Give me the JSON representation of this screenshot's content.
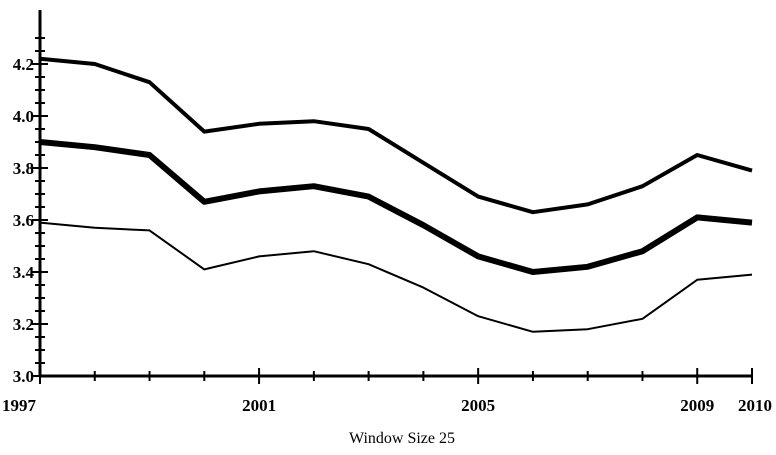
{
  "chart_data": {
    "type": "line",
    "title": "",
    "xlabel": "Window Size 25",
    "ylabel": "",
    "xlim": [
      1997,
      2010
    ],
    "ylim": [
      3.0,
      4.3
    ],
    "grid": false,
    "x": [
      1997,
      1998,
      1999,
      2000,
      2001,
      2002,
      2003,
      2004,
      2005,
      2006,
      2007,
      2008,
      2009,
      2010
    ],
    "x_ticks": [
      1997,
      2001,
      2005,
      2009,
      2010
    ],
    "x_tick_labels": [
      "1997",
      "2001",
      "2005",
      "2009",
      "2010"
    ],
    "y_ticks": [
      3.0,
      3.2,
      3.4,
      3.6,
      3.8,
      4.0,
      4.2
    ],
    "y_tick_labels": [
      "3.0",
      "3.2",
      "3.4",
      "3.6",
      "3.8",
      "4.0",
      "4.2"
    ],
    "series": [
      {
        "values": [
          4.22,
          4.2,
          4.13,
          3.94,
          3.97,
          3.98,
          3.95,
          3.82,
          3.69,
          3.63,
          3.66,
          3.73,
          3.85,
          3.79
        ],
        "color": "#000000",
        "style": "thick"
      },
      {
        "values": [
          3.9,
          3.88,
          3.85,
          3.67,
          3.71,
          3.73,
          3.69,
          3.58,
          3.46,
          3.4,
          3.42,
          3.48,
          3.61,
          3.59
        ],
        "color": "#000000",
        "style": "thickest"
      },
      {
        "values": [
          3.59,
          3.57,
          3.56,
          3.41,
          3.46,
          3.48,
          3.43,
          3.34,
          3.23,
          3.17,
          3.18,
          3.22,
          3.37,
          3.39
        ],
        "color": "#000000",
        "style": "thin"
      }
    ]
  }
}
